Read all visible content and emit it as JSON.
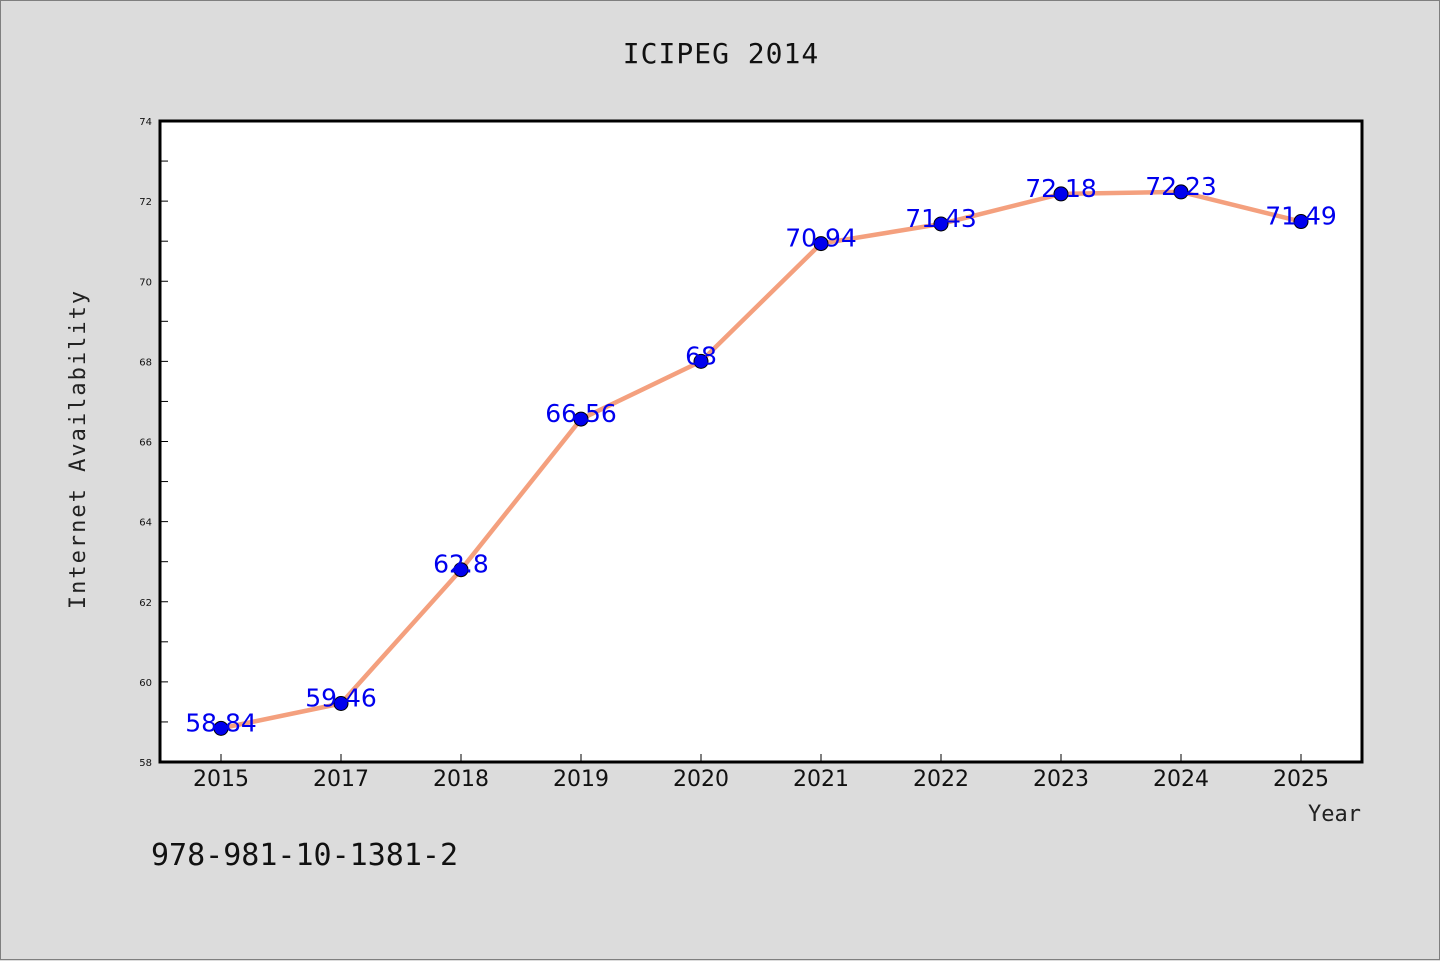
{
  "chart_data": {
    "type": "line",
    "title": "ICIPEG 2014",
    "xlabel": "Year",
    "ylabel": "Internet Availability",
    "categories": [
      "2015",
      "2017",
      "2018",
      "2019",
      "2020",
      "2021",
      "2022",
      "2023",
      "2024",
      "2025"
    ],
    "series": [
      {
        "values": [
          58.84,
          59.46,
          62.8,
          66.56,
          68,
          70.94,
          71.43,
          72.18,
          72.23,
          71.49
        ],
        "labels": [
          "58.84",
          "59.46",
          "62.8",
          "66.56",
          "68",
          "70.94",
          "71.43",
          "72.18",
          "72.23",
          "71.49"
        ],
        "line_color": "#f4a07e",
        "marker_color": "#0000ee"
      }
    ],
    "yticks": [
      "58",
      "60",
      "62",
      "64",
      "66",
      "68",
      "70",
      "72",
      "74"
    ],
    "ylim": [
      58,
      74
    ],
    "grid": false,
    "legend": "none"
  },
  "footer_text": "978-981-10-1381-2"
}
